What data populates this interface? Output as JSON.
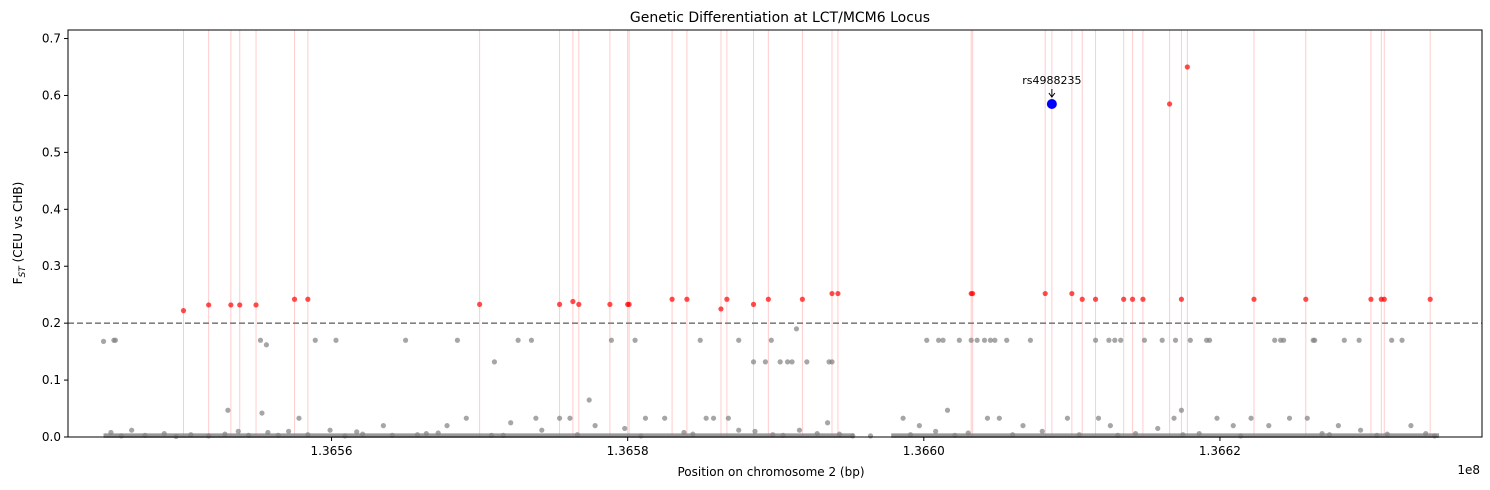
{
  "chart_data": {
    "type": "scatter",
    "title": "Genetic Differentiation at LCT/MCM6 Locus",
    "xlabel": "Position on chromosome 2 (bp)",
    "ylabel_main": "F",
    "ylabel_sub": "ST",
    "ylabel_rest": " (CEU vs CHB)",
    "x_offset_label": "1e8",
    "x_scale": 100000000,
    "xlim": [
      136542200,
      136637700
    ],
    "ylim": [
      0,
      0.715
    ],
    "x_ticks": [
      136560000,
      136580000,
      136600000,
      136620000
    ],
    "x_tick_labels": [
      "1.3656",
      "1.3658",
      "1.3660",
      "1.3662"
    ],
    "y_ticks": [
      0,
      0.1,
      0.2,
      0.3,
      0.4,
      0.5,
      0.6,
      0.7
    ],
    "y_tick_labels": [
      "0.0",
      "0.1",
      "0.2",
      "0.3",
      "0.4",
      "0.5",
      "0.6",
      "0.7"
    ],
    "threshold": {
      "y": 0.2,
      "color": "#808080",
      "style": "dashed"
    },
    "colors": {
      "background_snp": "#808080",
      "highlighted_snp": "#ff0000",
      "highlight_line": "#ffcccc",
      "focus_snp": "#0000ff"
    },
    "highlight": {
      "label": "rs4988235",
      "x": 136608650,
      "y": 0.585
    },
    "highlighted_points": [
      [
        136550000,
        0.222
      ],
      [
        136551700,
        0.232
      ],
      [
        136553200,
        0.232
      ],
      [
        136553800,
        0.232
      ],
      [
        136554900,
        0.232
      ],
      [
        136557500,
        0.242
      ],
      [
        136558400,
        0.242
      ],
      [
        136570000,
        0.233
      ],
      [
        136575400,
        0.233
      ],
      [
        136576300,
        0.238
      ],
      [
        136576700,
        0.233
      ],
      [
        136578800,
        0.233
      ],
      [
        136580000,
        0.233
      ],
      [
        136580100,
        0.233
      ],
      [
        136583000,
        0.242
      ],
      [
        136584000,
        0.242
      ],
      [
        136586300,
        0.225
      ],
      [
        136586700,
        0.242
      ],
      [
        136588500,
        0.233
      ],
      [
        136589500,
        0.242
      ],
      [
        136591800,
        0.242
      ],
      [
        136593800,
        0.252
      ],
      [
        136594200,
        0.252
      ],
      [
        136603200,
        0.252
      ],
      [
        136603300,
        0.252
      ],
      [
        136608200,
        0.252
      ],
      [
        136610000,
        0.252
      ],
      [
        136610700,
        0.242
      ],
      [
        136611600,
        0.242
      ],
      [
        136613500,
        0.242
      ],
      [
        136614100,
        0.242
      ],
      [
        136614800,
        0.242
      ],
      [
        136616600,
        0.585
      ],
      [
        136617400,
        0.242
      ],
      [
        136617800,
        0.65
      ],
      [
        136622300,
        0.242
      ],
      [
        136625800,
        0.242
      ],
      [
        136630200,
        0.242
      ],
      [
        136630900,
        0.242
      ],
      [
        136631100,
        0.242
      ],
      [
        136634200,
        0.242
      ]
    ],
    "background_points": [
      [
        136544600,
        0.168
      ],
      [
        136545300,
        0.17
      ],
      [
        136545400,
        0.17
      ],
      [
        136555200,
        0.17
      ],
      [
        136555600,
        0.162
      ],
      [
        136558900,
        0.17
      ],
      [
        136560300,
        0.17
      ],
      [
        136565000,
        0.17
      ],
      [
        136568500,
        0.17
      ],
      [
        136571000,
        0.132
      ],
      [
        136572600,
        0.17
      ],
      [
        136573500,
        0.17
      ],
      [
        136578900,
        0.17
      ],
      [
        136580500,
        0.17
      ],
      [
        136584900,
        0.17
      ],
      [
        136587500,
        0.17
      ],
      [
        136588500,
        0.132
      ],
      [
        136589300,
        0.132
      ],
      [
        136590300,
        0.132
      ],
      [
        136590800,
        0.132
      ],
      [
        136591100,
        0.132
      ],
      [
        136592100,
        0.132
      ],
      [
        136591400,
        0.19
      ],
      [
        136593600,
        0.132
      ],
      [
        136593800,
        0.132
      ],
      [
        136589700,
        0.17
      ],
      [
        136600200,
        0.17
      ],
      [
        136601000,
        0.17
      ],
      [
        136601300,
        0.17
      ],
      [
        136602400,
        0.17
      ],
      [
        136603200,
        0.17
      ],
      [
        136603600,
        0.17
      ],
      [
        136604100,
        0.17
      ],
      [
        136604500,
        0.17
      ],
      [
        136604800,
        0.17
      ],
      [
        136605600,
        0.17
      ],
      [
        136607200,
        0.17
      ],
      [
        136611600,
        0.17
      ],
      [
        136612500,
        0.17
      ],
      [
        136612900,
        0.17
      ],
      [
        136613300,
        0.17
      ],
      [
        136614900,
        0.17
      ],
      [
        136616100,
        0.17
      ],
      [
        136617000,
        0.17
      ],
      [
        136618000,
        0.17
      ],
      [
        136619100,
        0.17
      ],
      [
        136619300,
        0.17
      ],
      [
        136623700,
        0.17
      ],
      [
        136624100,
        0.17
      ],
      [
        136624300,
        0.17
      ],
      [
        136626300,
        0.17
      ],
      [
        136626400,
        0.17
      ],
      [
        136628400,
        0.17
      ],
      [
        136629400,
        0.17
      ],
      [
        136631600,
        0.17
      ],
      [
        136632300,
        0.17
      ],
      [
        136553000,
        0.047
      ],
      [
        136555300,
        0.042
      ],
      [
        136577400,
        0.065
      ],
      [
        136601600,
        0.047
      ],
      [
        136617400,
        0.047
      ],
      [
        136551700,
        0.002
      ],
      [
        136552800,
        0.005
      ],
      [
        136553700,
        0.01
      ],
      [
        136554400,
        0.003
      ],
      [
        136555700,
        0.008
      ],
      [
        136557800,
        0.033
      ],
      [
        136558400,
        0.004
      ],
      [
        136559900,
        0.012
      ],
      [
        136562100,
        0.005
      ],
      [
        136563500,
        0.02
      ],
      [
        136566400,
        0.006
      ],
      [
        136567800,
        0.02
      ],
      [
        136569100,
        0.033
      ],
      [
        136570800,
        0.003
      ],
      [
        136572100,
        0.025
      ],
      [
        136573800,
        0.033
      ],
      [
        136574200,
        0.012
      ],
      [
        136575400,
        0.033
      ],
      [
        136576100,
        0.033
      ],
      [
        136577800,
        0.02
      ],
      [
        136579800,
        0.015
      ],
      [
        136581200,
        0.033
      ],
      [
        136582500,
        0.033
      ],
      [
        136583800,
        0.008
      ],
      [
        136585300,
        0.033
      ],
      [
        136585800,
        0.033
      ],
      [
        136586800,
        0.033
      ],
      [
        136587500,
        0.012
      ],
      [
        136588600,
        0.01
      ],
      [
        136589800,
        0.004
      ],
      [
        136591600,
        0.012
      ],
      [
        136592800,
        0.006
      ],
      [
        136593500,
        0.025
      ],
      [
        136594300,
        0.005
      ],
      [
        136595200,
        0.002
      ],
      [
        136598600,
        0.033
      ],
      [
        136599700,
        0.02
      ],
      [
        136600800,
        0.01
      ],
      [
        136603000,
        0.007
      ],
      [
        136604300,
        0.033
      ],
      [
        136605100,
        0.033
      ],
      [
        136606700,
        0.02
      ],
      [
        136608000,
        0.01
      ],
      [
        136609700,
        0.033
      ],
      [
        136610500,
        0.004
      ],
      [
        136611800,
        0.033
      ],
      [
        136612600,
        0.02
      ],
      [
        136614300,
        0.006
      ],
      [
        136615800,
        0.015
      ],
      [
        136616900,
        0.033
      ],
      [
        136618600,
        0.006
      ],
      [
        136619800,
        0.033
      ],
      [
        136620900,
        0.02
      ],
      [
        136622100,
        0.033
      ],
      [
        136623300,
        0.02
      ],
      [
        136624700,
        0.033
      ],
      [
        136625900,
        0.033
      ],
      [
        136626900,
        0.006
      ],
      [
        136628000,
        0.02
      ],
      [
        136629500,
        0.012
      ],
      [
        136631300,
        0.005
      ],
      [
        136632900,
        0.02
      ],
      [
        136633900,
        0.006
      ],
      [
        136545100,
        0.008
      ],
      [
        136545800,
        0.002
      ],
      [
        136546500,
        0.012
      ],
      [
        136547400,
        0.003
      ],
      [
        136548700,
        0.006
      ],
      [
        136549500,
        0.001
      ],
      [
        136550500,
        0.004
      ],
      [
        136556400,
        0.003
      ],
      [
        136557100,
        0.01
      ],
      [
        136560900,
        0.002
      ],
      [
        136561700,
        0.009
      ],
      [
        136564100,
        0.003
      ],
      [
        136565800,
        0.004
      ],
      [
        136567200,
        0.007
      ],
      [
        136571600,
        0.003
      ],
      [
        136576600,
        0.004
      ],
      [
        136580900,
        0.002
      ],
      [
        136584400,
        0.005
      ],
      [
        136590500,
        0.003
      ],
      [
        136596400,
        0.002
      ],
      [
        136599100,
        0.004
      ],
      [
        136602100,
        0.003
      ],
      [
        136606000,
        0.004
      ],
      [
        136613100,
        0.003
      ],
      [
        136617500,
        0.004
      ],
      [
        136621400,
        0.002
      ],
      [
        136627400,
        0.004
      ],
      [
        136630600,
        0.003
      ],
      [
        136634500,
        0.002
      ]
    ],
    "dense_segments": [
      {
        "x_start": 136544600,
        "x_end": 136595300,
        "y": 0.001
      },
      {
        "x_start": 136597800,
        "x_end": 136634800,
        "y": 0.001
      }
    ]
  }
}
